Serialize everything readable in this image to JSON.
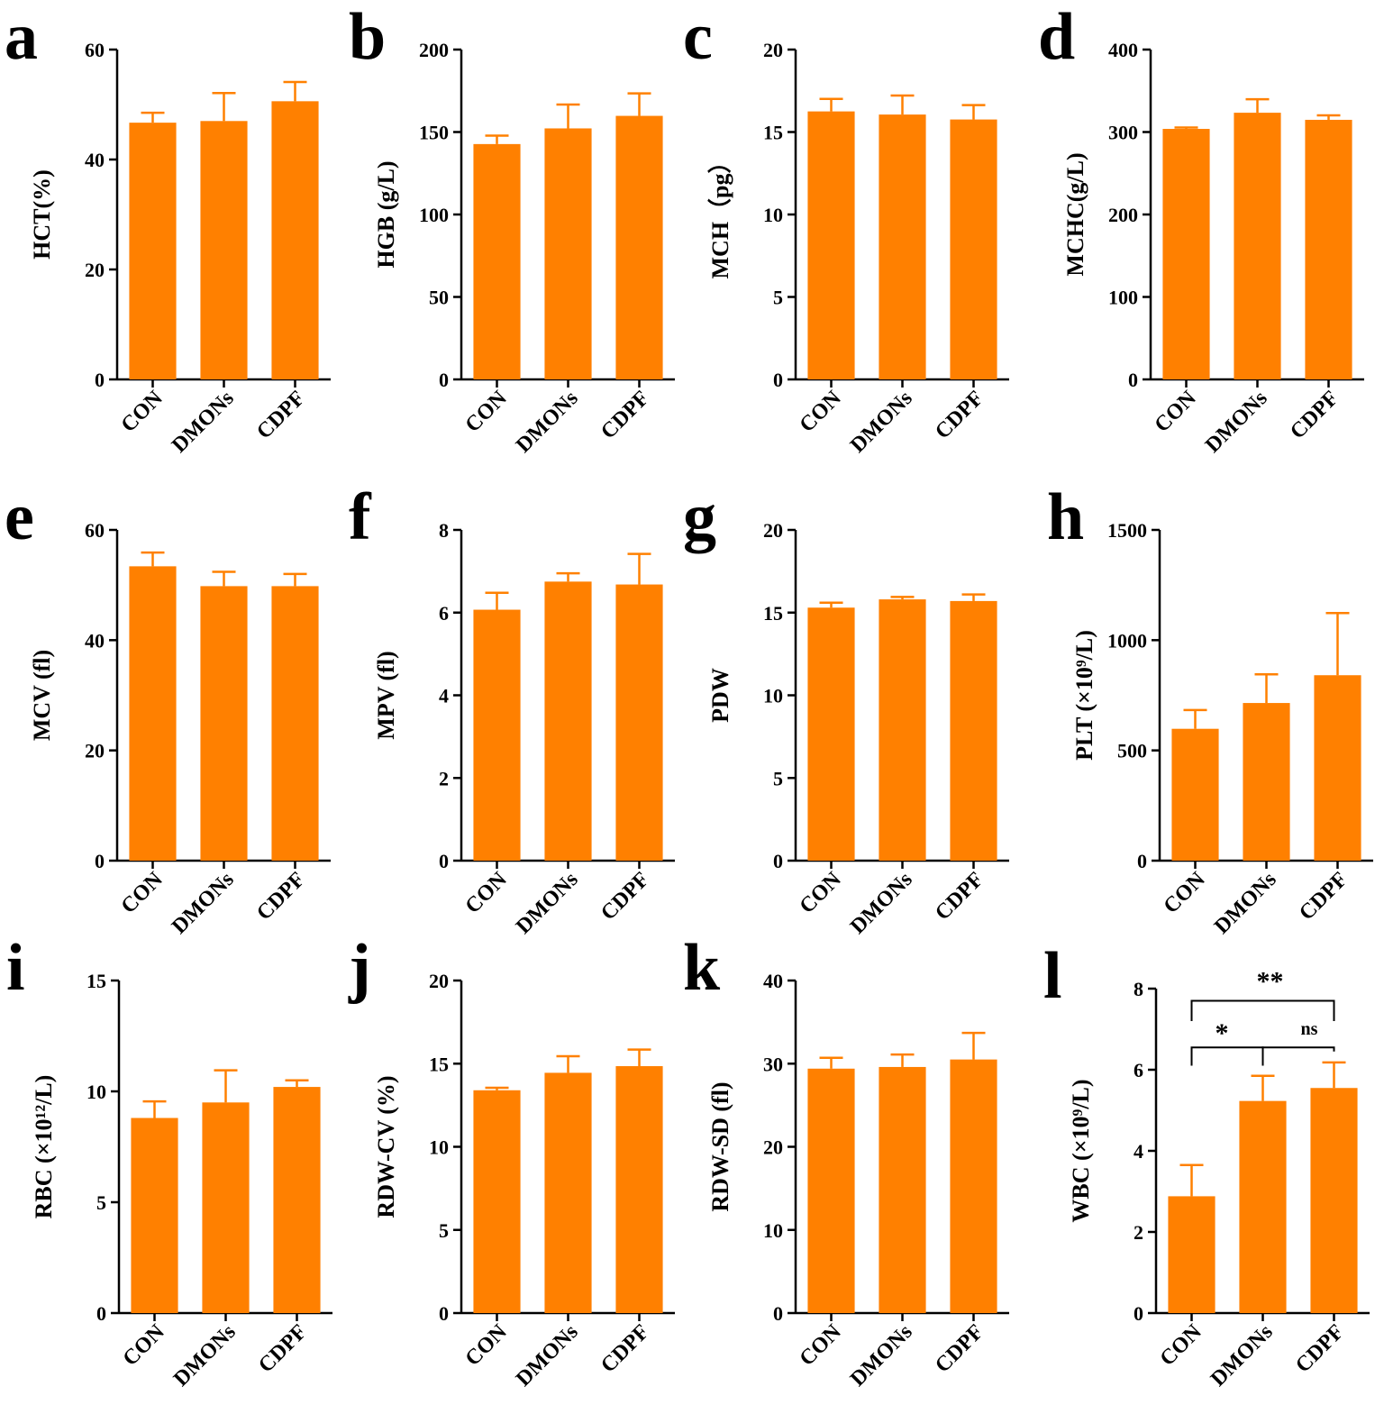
{
  "bar_color": "#FF8000",
  "axis_color": "#000000",
  "chart_data": [
    {
      "panel": "a",
      "type": "bar",
      "ylabel": "HCT(%)",
      "categories": [
        "CON",
        "DMONs",
        "CDPF"
      ],
      "values": [
        46.7,
        47.0,
        50.6
      ],
      "errors": [
        1.8,
        5.1,
        3.5
      ],
      "ylim": [
        0,
        60
      ],
      "yticks": [
        0,
        20,
        40,
        60
      ]
    },
    {
      "panel": "b",
      "type": "bar",
      "ylabel": "HGB (g/L)",
      "categories": [
        "CON",
        "DMONs",
        "CDPF"
      ],
      "values": [
        142.7,
        152.2,
        159.8
      ],
      "errors": [
        5.1,
        14.5,
        13.6
      ],
      "ylim": [
        0,
        200
      ],
      "yticks": [
        0,
        50,
        100,
        150,
        200
      ]
    },
    {
      "panel": "c",
      "type": "bar",
      "ylabel": "MCH（pg）",
      "categories": [
        "CON",
        "DMONs",
        "CDPF"
      ],
      "values": [
        16.25,
        16.06,
        15.76
      ],
      "errors": [
        0.76,
        1.15,
        0.87
      ],
      "ylim": [
        0,
        20
      ],
      "yticks": [
        0,
        5,
        10,
        15,
        20
      ]
    },
    {
      "panel": "d",
      "type": "bar",
      "ylabel": "MCHC(g/L)",
      "categories": [
        "CON",
        "DMONs",
        "CDPF"
      ],
      "values": [
        303.8,
        323.4,
        314.8
      ],
      "errors": [
        1.7,
        16.3,
        5.4
      ],
      "ylim": [
        0,
        400
      ],
      "yticks": [
        0,
        100,
        200,
        300,
        400
      ]
    },
    {
      "panel": "e",
      "type": "bar",
      "ylabel": "MCV (fl)",
      "categories": [
        "CON",
        "DMONs",
        "CDPF"
      ],
      "values": [
        53.4,
        49.8,
        49.8
      ],
      "errors": [
        2.5,
        2.6,
        2.2
      ],
      "ylim": [
        0,
        60
      ],
      "yticks": [
        0,
        20,
        40,
        60
      ]
    },
    {
      "panel": "f",
      "type": "bar",
      "ylabel": "MPV (fl)",
      "categories": [
        "CON",
        "DMONs",
        "CDPF"
      ],
      "values": [
        6.07,
        6.75,
        6.68
      ],
      "errors": [
        0.41,
        0.2,
        0.74
      ],
      "ylim": [
        0,
        8
      ],
      "yticks": [
        0,
        2,
        4,
        6,
        8
      ]
    },
    {
      "panel": "g",
      "type": "bar",
      "ylabel": "PDW",
      "categories": [
        "CON",
        "DMONs",
        "CDPF"
      ],
      "values": [
        15.3,
        15.8,
        15.7
      ],
      "errors": [
        0.3,
        0.15,
        0.4
      ],
      "ylim": [
        0,
        20
      ],
      "yticks": [
        0,
        5,
        10,
        15,
        20
      ]
    },
    {
      "panel": "h",
      "type": "bar",
      "ylabel": "PLT (×10⁹/L)",
      "categories": [
        "CON",
        "DMONs",
        "CDPF"
      ],
      "values": [
        598,
        715,
        841
      ],
      "errors": [
        85,
        130,
        282
      ],
      "ylim": [
        0,
        1500
      ],
      "yticks": [
        0,
        500,
        1000,
        1500
      ]
    },
    {
      "panel": "i",
      "type": "bar",
      "ylabel": "RBC (×10¹²/L)",
      "categories": [
        "CON",
        "DMONs",
        "CDPF"
      ],
      "values": [
        8.8,
        9.5,
        10.2
      ],
      "errors": [
        0.75,
        1.45,
        0.3
      ],
      "ylim": [
        0,
        15
      ],
      "yticks": [
        0,
        5,
        10,
        15
      ]
    },
    {
      "panel": "j",
      "type": "bar",
      "ylabel": "RDW-CV (%)",
      "categories": [
        "CON",
        "DMONs",
        "CDPF"
      ],
      "values": [
        13.4,
        14.45,
        14.85
      ],
      "errors": [
        0.15,
        1.0,
        1.0
      ],
      "ylim": [
        0,
        20
      ],
      "yticks": [
        0,
        5,
        10,
        15,
        20
      ]
    },
    {
      "panel": "k",
      "type": "bar",
      "ylabel": "RDW-SD (fl)",
      "categories": [
        "CON",
        "DMONs",
        "CDPF"
      ],
      "values": [
        29.4,
        29.6,
        30.5
      ],
      "errors": [
        1.3,
        1.5,
        3.2
      ],
      "ylim": [
        0,
        40
      ],
      "yticks": [
        0,
        10,
        20,
        30,
        40
      ]
    },
    {
      "panel": "l",
      "type": "bar",
      "ylabel": "WBC (×10⁹/L)",
      "categories": [
        "CON",
        "DMONs",
        "CDPF"
      ],
      "values": [
        2.88,
        5.23,
        5.55
      ],
      "errors": [
        0.77,
        0.62,
        0.63
      ],
      "ylim": [
        0,
        8
      ],
      "yticks": [
        0,
        2,
        4,
        6,
        8
      ],
      "significance": [
        {
          "from": "CON",
          "to": "DMONs",
          "label": "*"
        },
        {
          "from": "DMONs",
          "to": "CDPF",
          "label": "ns"
        },
        {
          "from": "CON",
          "to": "CDPF",
          "label": "**"
        }
      ]
    }
  ]
}
